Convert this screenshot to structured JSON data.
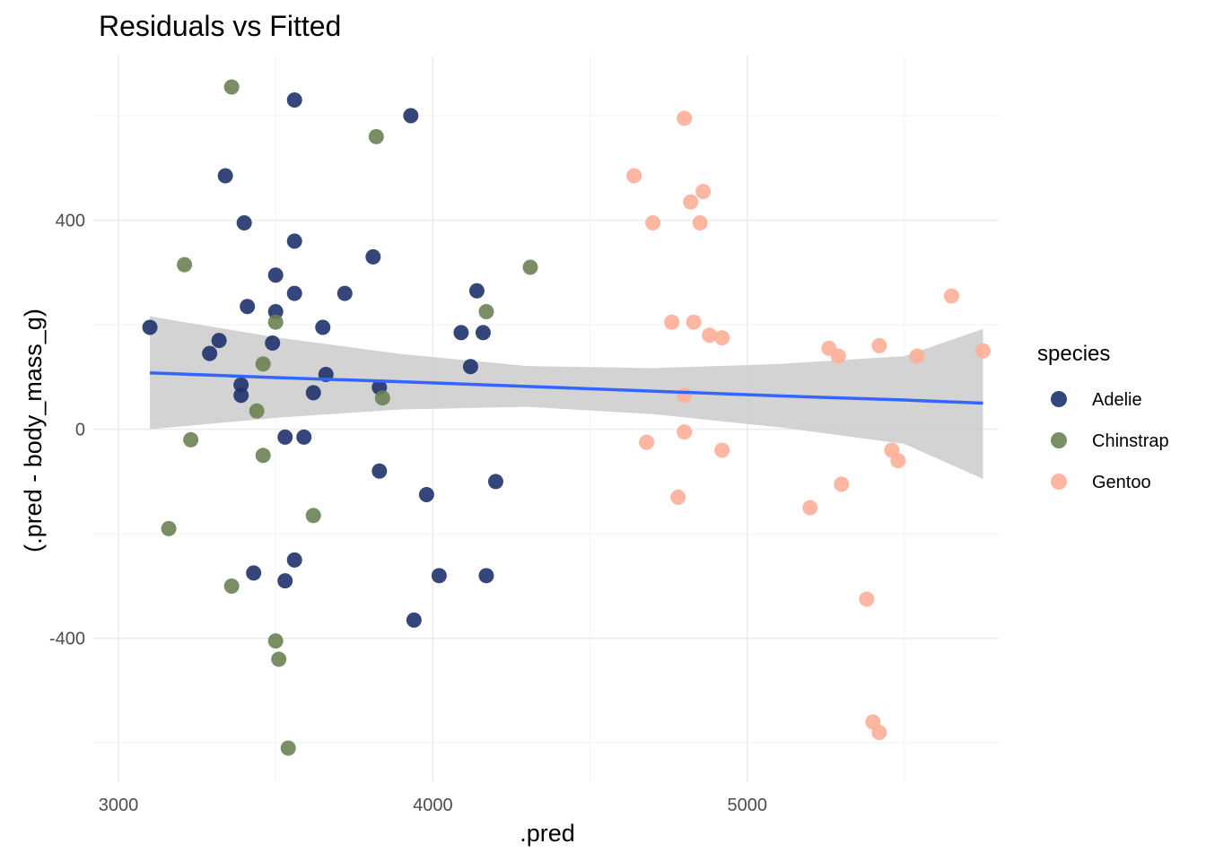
{
  "chart_data": {
    "type": "scatter",
    "title": "Residuals vs Fitted",
    "xlabel": ".pred",
    "ylabel": "(.pred - body_mass_g)",
    "xlim": [
      2920,
      5800
    ],
    "ylim": [
      -675,
      715
    ],
    "x_ticks": [
      3000,
      4000,
      5000
    ],
    "x_tick_labels": [
      "3000",
      "4000",
      "5000"
    ],
    "y_ticks": [
      -400,
      0,
      400
    ],
    "y_tick_labels": [
      "-400",
      "0",
      "400"
    ],
    "grid": true,
    "legend": {
      "title": "species",
      "position": "right"
    },
    "series": [
      {
        "name": "Adelie",
        "color": "#1f336b",
        "points": [
          [
            3100,
            195
          ],
          [
            3560,
            630
          ],
          [
            3930,
            600
          ],
          [
            3340,
            485
          ],
          [
            3400,
            395
          ],
          [
            3560,
            360
          ],
          [
            3810,
            330
          ],
          [
            3500,
            295
          ],
          [
            3560,
            260
          ],
          [
            3720,
            260
          ],
          [
            3410,
            235
          ],
          [
            3500,
            225
          ],
          [
            3650,
            195
          ],
          [
            3320,
            170
          ],
          [
            3290,
            145
          ],
          [
            3490,
            165
          ],
          [
            4140,
            265
          ],
          [
            4090,
            185
          ],
          [
            4160,
            185
          ],
          [
            4120,
            120
          ],
          [
            3660,
            105
          ],
          [
            3390,
            85
          ],
          [
            3390,
            65
          ],
          [
            3620,
            70
          ],
          [
            3830,
            80
          ],
          [
            3530,
            -15
          ],
          [
            3590,
            -15
          ],
          [
            3830,
            -80
          ],
          [
            3980,
            -125
          ],
          [
            4200,
            -100
          ],
          [
            3430,
            -275
          ],
          [
            3560,
            -250
          ],
          [
            3530,
            -290
          ],
          [
            4020,
            -280
          ],
          [
            4170,
            -280
          ],
          [
            3940,
            -365
          ]
        ]
      },
      {
        "name": "Chinstrap",
        "color": "#6b8255",
        "points": [
          [
            3360,
            655
          ],
          [
            3820,
            560
          ],
          [
            3210,
            315
          ],
          [
            4310,
            310
          ],
          [
            4170,
            225
          ],
          [
            3500,
            205
          ],
          [
            3460,
            125
          ],
          [
            3840,
            60
          ],
          [
            3440,
            35
          ],
          [
            3230,
            -20
          ],
          [
            3460,
            -50
          ],
          [
            3620,
            -165
          ],
          [
            3160,
            -190
          ],
          [
            3360,
            -300
          ],
          [
            3500,
            -405
          ],
          [
            3510,
            -440
          ],
          [
            3540,
            -610
          ]
        ]
      },
      {
        "name": "Gentoo",
        "color": "#fcae97",
        "points": [
          [
            4800,
            595
          ],
          [
            4640,
            485
          ],
          [
            4860,
            455
          ],
          [
            4820,
            435
          ],
          [
            4700,
            395
          ],
          [
            4850,
            395
          ],
          [
            5650,
            255
          ],
          [
            4760,
            205
          ],
          [
            4830,
            205
          ],
          [
            4880,
            180
          ],
          [
            4920,
            175
          ],
          [
            5260,
            155
          ],
          [
            5420,
            160
          ],
          [
            5750,
            150
          ],
          [
            5290,
            140
          ],
          [
            5540,
            140
          ],
          [
            4800,
            65
          ],
          [
            4800,
            -5
          ],
          [
            4680,
            -25
          ],
          [
            4920,
            -40
          ],
          [
            5460,
            -40
          ],
          [
            5480,
            -60
          ],
          [
            4780,
            -130
          ],
          [
            5300,
            -105
          ],
          [
            5200,
            -150
          ],
          [
            5380,
            -325
          ],
          [
            5400,
            -560
          ],
          [
            5420,
            -580
          ]
        ]
      }
    ],
    "trend": {
      "name": "linear fit",
      "color": "#3366ff",
      "band_color": "#c8c8c8",
      "points": [
        [
          3100,
          108,
          0,
          216
        ],
        [
          3500,
          99,
          22,
          176
        ],
        [
          3900,
          91,
          38,
          144
        ],
        [
          4300,
          82,
          43,
          121
        ],
        [
          4700,
          73,
          29,
          117
        ],
        [
          5100,
          64,
          4,
          125
        ],
        [
          5500,
          56,
          -28,
          140
        ],
        [
          5750,
          50,
          -95,
          192
        ]
      ]
    }
  }
}
